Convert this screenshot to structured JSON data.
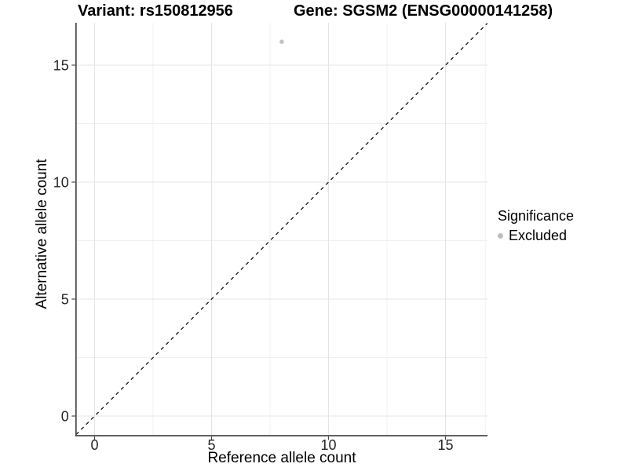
{
  "titles": {
    "left": "Variant: rs150812956",
    "right": "Gene: SGSM2 (ENSG00000141258)"
  },
  "chart_data": {
    "type": "scatter",
    "title": "Variant: rs150812956    Gene: SGSM2 (ENSG00000141258)",
    "xlabel": "Reference allele count",
    "ylabel": "Alternative allele count",
    "x_ticks": [
      0,
      5,
      10,
      15
    ],
    "y_ticks": [
      0,
      5,
      10,
      15
    ],
    "x_minor_gridlines": [
      2.5,
      7.5,
      12.5,
      16.7
    ],
    "y_minor_gridlines": [
      2.5,
      7.5,
      12.5
    ],
    "xlim": [
      -0.79,
      16.79
    ],
    "ylim": [
      -0.84,
      16.81
    ],
    "grid": true,
    "points": [
      {
        "x": 8,
        "y": 16,
        "series": "Excluded"
      }
    ],
    "reference_line": {
      "style": "dashed",
      "slope": 1,
      "intercept": 0
    },
    "legend": {
      "title": "Significance",
      "position": "right",
      "items": [
        {
          "label": "Excluded",
          "color": "#bdbdbd",
          "marker": "circle"
        }
      ]
    },
    "colors": {
      "point": "#c2c2c2",
      "grid_major": "#e4e4e4",
      "grid_minor": "#f0f0f0",
      "axis_line": "#4a4a4a",
      "tick_mark": "#4a4a4a",
      "tick_text": "#262626",
      "dashed_line": "#111111"
    }
  }
}
